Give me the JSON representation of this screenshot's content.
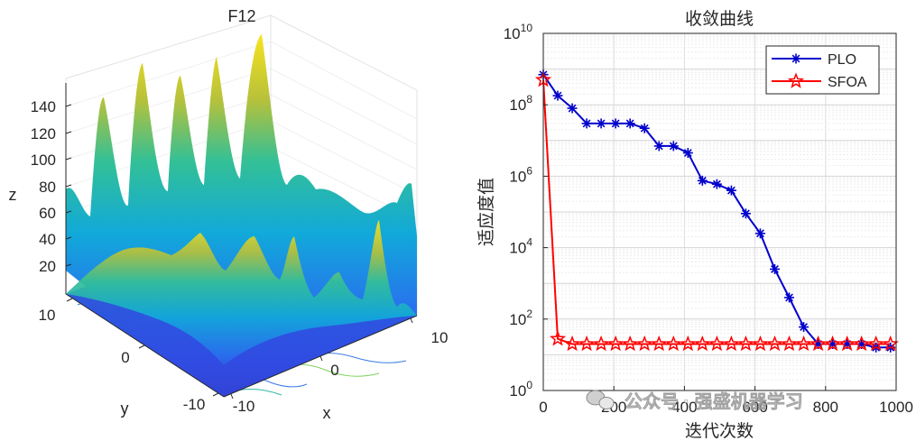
{
  "chart_data": [
    {
      "type": "surface",
      "title": "F12",
      "xlabel": "x",
      "ylabel": "y",
      "zlabel": "z",
      "xlim": [
        -10,
        10
      ],
      "ylim": [
        -10,
        10
      ],
      "zticks": [
        "20",
        "40",
        "60",
        "80",
        "100",
        "120",
        "140"
      ],
      "xticks": [
        "-10",
        "0",
        "10"
      ],
      "yticks": [
        "-10",
        "0",
        "10"
      ],
      "colormap": "parula"
    },
    {
      "type": "line",
      "title": "收敛曲线",
      "xlabel": "迭代次数",
      "ylabel": "适应度值",
      "yscale": "log",
      "xlim": [
        0,
        1000
      ],
      "ylim": [
        1,
        10000000000
      ],
      "xticks": [
        "0",
        "200",
        "400",
        "600",
        "800",
        "1000"
      ],
      "ytick_bases": [
        "10",
        "10",
        "10",
        "10",
        "10",
        "10"
      ],
      "ytick_exponents": [
        "0",
        "2",
        "4",
        "6",
        "8",
        "10"
      ],
      "legend_position": "top-right",
      "series": [
        {
          "name": "PLO",
          "color": "#0000cc",
          "marker": "asterisk",
          "x": [
            0,
            41,
            82,
            123,
            164,
            205,
            246,
            287,
            328,
            369,
            410,
            451,
            492,
            533,
            574,
            615,
            656,
            697,
            738,
            779,
            820,
            861,
            902,
            943,
            984
          ],
          "y": [
            700000000,
            180000000,
            80000000,
            30000000,
            30000000,
            30000000,
            30000000,
            22000000,
            7000000,
            7000000,
            4500000,
            750000,
            600000,
            400000,
            90000,
            25000,
            2500,
            400,
            60,
            20,
            20,
            20,
            20,
            16,
            16
          ]
        },
        {
          "name": "SFOA",
          "color": "#ff0000",
          "marker": "star",
          "x": [
            0,
            41,
            82,
            123,
            164,
            205,
            246,
            287,
            328,
            369,
            410,
            451,
            492,
            533,
            574,
            615,
            656,
            697,
            738,
            779,
            820,
            861,
            902,
            943,
            984
          ],
          "y": [
            500000000,
            28,
            20,
            20,
            20,
            20,
            20,
            20,
            20,
            20,
            20,
            20,
            20,
            20,
            20,
            20,
            20,
            20,
            20,
            20,
            20,
            20,
            20,
            20,
            20
          ]
        }
      ]
    }
  ],
  "watermark": {
    "text": "公众号 · 强盛机器学习"
  },
  "colors": {
    "axis": "#262626",
    "grid": "#dcdcdc",
    "plo": "#0000cc",
    "sfoa": "#ff0000"
  }
}
